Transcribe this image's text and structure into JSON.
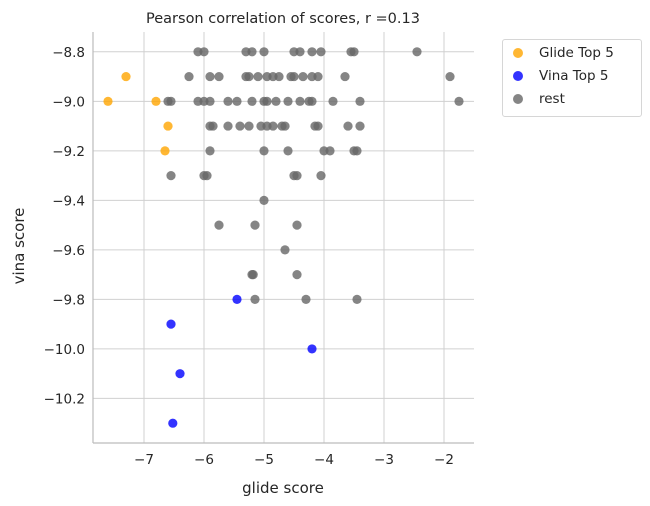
{
  "chart_data": {
    "type": "scatter",
    "title": "Pearson correlation of scores, r =0.13",
    "xlabel": "glide score",
    "ylabel": "vina score",
    "xlim": [
      -7.85,
      -1.5
    ],
    "ylim": [
      -10.38,
      -8.72
    ],
    "xticks": [
      -7,
      -6,
      -5,
      -4,
      -3,
      -2
    ],
    "yticks": [
      -8.8,
      -9.0,
      -9.2,
      -9.4,
      -9.6,
      -9.8,
      -10.0,
      -10.2
    ],
    "xtick_labels": [
      "−7",
      "−6",
      "−5",
      "−4",
      "−3",
      "−2"
    ],
    "ytick_labels": [
      "−8.8",
      "−9.0",
      "−9.2",
      "−9.4",
      "−9.6",
      "−9.8",
      "−10.0",
      "−10.2"
    ],
    "grid": true,
    "legend_position": "outside-right",
    "series": [
      {
        "name": "rest",
        "color": "#666666",
        "points": [
          [
            -6.1,
            -8.8
          ],
          [
            -6.0,
            -8.8
          ],
          [
            -5.3,
            -8.8
          ],
          [
            -5.2,
            -8.8
          ],
          [
            -5.0,
            -8.8
          ],
          [
            -4.5,
            -8.8
          ],
          [
            -4.4,
            -8.8
          ],
          [
            -4.2,
            -8.8
          ],
          [
            -4.05,
            -8.8
          ],
          [
            -3.55,
            -8.8
          ],
          [
            -3.5,
            -8.8
          ],
          [
            -2.45,
            -8.8
          ],
          [
            -6.25,
            -8.9
          ],
          [
            -5.9,
            -8.9
          ],
          [
            -5.75,
            -8.9
          ],
          [
            -5.3,
            -8.9
          ],
          [
            -5.25,
            -8.9
          ],
          [
            -5.1,
            -8.9
          ],
          [
            -4.95,
            -8.9
          ],
          [
            -4.85,
            -8.9
          ],
          [
            -4.75,
            -8.9
          ],
          [
            -4.55,
            -8.9
          ],
          [
            -4.5,
            -8.9
          ],
          [
            -4.35,
            -8.9
          ],
          [
            -4.2,
            -8.9
          ],
          [
            -4.1,
            -8.9
          ],
          [
            -3.65,
            -8.9
          ],
          [
            -1.9,
            -8.9
          ],
          [
            -6.6,
            -9.0
          ],
          [
            -6.55,
            -9.0
          ],
          [
            -6.1,
            -9.0
          ],
          [
            -6.0,
            -9.0
          ],
          [
            -5.9,
            -9.0
          ],
          [
            -5.6,
            -9.0
          ],
          [
            -5.45,
            -9.0
          ],
          [
            -5.2,
            -9.0
          ],
          [
            -5.0,
            -9.0
          ],
          [
            -4.95,
            -9.0
          ],
          [
            -4.8,
            -9.0
          ],
          [
            -4.6,
            -9.0
          ],
          [
            -4.4,
            -9.0
          ],
          [
            -4.25,
            -9.0
          ],
          [
            -4.2,
            -9.0
          ],
          [
            -3.85,
            -9.0
          ],
          [
            -3.4,
            -9.0
          ],
          [
            -1.75,
            -9.0
          ],
          [
            -5.9,
            -9.1
          ],
          [
            -5.85,
            -9.1
          ],
          [
            -5.6,
            -9.1
          ],
          [
            -5.4,
            -9.1
          ],
          [
            -5.25,
            -9.1
          ],
          [
            -5.05,
            -9.1
          ],
          [
            -4.95,
            -9.1
          ],
          [
            -4.85,
            -9.1
          ],
          [
            -4.7,
            -9.1
          ],
          [
            -4.65,
            -9.1
          ],
          [
            -4.15,
            -9.1
          ],
          [
            -4.1,
            -9.1
          ],
          [
            -3.6,
            -9.1
          ],
          [
            -3.4,
            -9.1
          ],
          [
            -5.9,
            -9.2
          ],
          [
            -5.0,
            -9.2
          ],
          [
            -4.6,
            -9.2
          ],
          [
            -4.0,
            -9.2
          ],
          [
            -3.9,
            -9.2
          ],
          [
            -3.5,
            -9.2
          ],
          [
            -3.45,
            -9.2
          ],
          [
            -6.55,
            -9.3
          ],
          [
            -6.0,
            -9.3
          ],
          [
            -5.95,
            -9.3
          ],
          [
            -4.5,
            -9.3
          ],
          [
            -4.45,
            -9.3
          ],
          [
            -4.05,
            -9.3
          ],
          [
            -5.0,
            -9.4
          ],
          [
            -5.75,
            -9.5
          ],
          [
            -5.15,
            -9.5
          ],
          [
            -4.45,
            -9.5
          ],
          [
            -4.65,
            -9.6
          ],
          [
            -5.2,
            -9.7
          ],
          [
            -5.18,
            -9.7
          ],
          [
            -4.45,
            -9.7
          ],
          [
            -5.15,
            -9.8
          ],
          [
            -4.3,
            -9.8
          ],
          [
            -3.45,
            -9.8
          ]
        ]
      },
      {
        "name": "Glide Top 5",
        "color": "#ffa500",
        "points": [
          [
            -7.6,
            -9.0
          ],
          [
            -7.3,
            -8.9
          ],
          [
            -6.8,
            -9.0
          ],
          [
            -6.6,
            -9.1
          ],
          [
            -6.65,
            -9.2
          ]
        ]
      },
      {
        "name": "Vina Top 5",
        "color": "#0000ff",
        "points": [
          [
            -5.45,
            -9.8
          ],
          [
            -4.2,
            -10.0
          ],
          [
            -6.55,
            -9.9
          ],
          [
            -6.4,
            -10.1
          ],
          [
            -6.52,
            -10.3
          ]
        ]
      }
    ],
    "legend_order": [
      "Glide Top 5",
      "Vina Top 5",
      "rest"
    ]
  }
}
